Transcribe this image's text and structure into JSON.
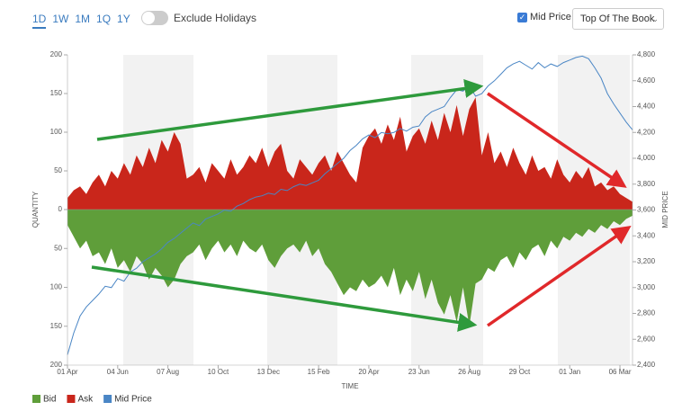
{
  "controls": {
    "ranges": [
      "1D",
      "1W",
      "1M",
      "1Q",
      "1Y"
    ],
    "toggle_label": "Exclude Holidays",
    "checkbox_label": "Mid Price",
    "select_value": "Top Of The Book"
  },
  "chart_data": {
    "type": "mirror-area",
    "x_label": "TIME",
    "y_label": "QUANTITY",
    "y2_label": "MID PRICE",
    "categories": [
      "01 Apr",
      null,
      null,
      null,
      null,
      null,
      null,
      null,
      "04 Jun",
      null,
      null,
      null,
      null,
      null,
      null,
      null,
      "07 Aug",
      null,
      null,
      null,
      null,
      null,
      null,
      null,
      "10 Oct",
      null,
      null,
      null,
      null,
      null,
      null,
      null,
      "13 Dec",
      null,
      null,
      null,
      null,
      null,
      null,
      null,
      "15 Feb",
      null,
      null,
      null,
      null,
      null,
      null,
      null,
      "20 Apr",
      null,
      null,
      null,
      null,
      null,
      null,
      null,
      "23 Jun",
      null,
      null,
      null,
      null,
      null,
      null,
      null,
      "26 Aug",
      null,
      null,
      null,
      null,
      null,
      null,
      null,
      "29 Oct",
      null,
      null,
      null,
      null,
      null,
      null,
      null,
      "01 Jan",
      null,
      null,
      null,
      null,
      null,
      null,
      null,
      "06 Mar",
      null,
      null
    ],
    "series": [
      {
        "name": "Bid",
        "color": "#5f9e3a",
        "values": [
          20,
          35,
          50,
          40,
          60,
          55,
          70,
          50,
          75,
          65,
          80,
          60,
          70,
          90,
          75,
          85,
          100,
          90,
          70,
          60,
          55,
          45,
          65,
          50,
          40,
          55,
          45,
          60,
          40,
          50,
          55,
          45,
          65,
          75,
          60,
          50,
          45,
          55,
          40,
          60,
          50,
          70,
          80,
          95,
          110,
          100,
          105,
          90,
          100,
          95,
          85,
          100,
          75,
          110,
          90,
          105,
          80,
          115,
          90,
          120,
          135,
          110,
          145,
          100,
          150,
          95,
          90,
          75,
          80,
          65,
          60,
          75,
          55,
          65,
          50,
          45,
          60,
          40,
          50,
          35,
          40,
          30,
          35,
          25,
          30,
          20,
          25,
          15,
          20,
          12,
          8
        ]
      },
      {
        "name": "Ask",
        "color": "#c9261b",
        "values": [
          15,
          25,
          30,
          20,
          35,
          45,
          30,
          50,
          40,
          60,
          45,
          70,
          55,
          80,
          60,
          90,
          75,
          100,
          85,
          40,
          45,
          55,
          35,
          60,
          50,
          40,
          65,
          45,
          55,
          70,
          60,
          80,
          55,
          75,
          85,
          50,
          40,
          65,
          55,
          45,
          60,
          70,
          50,
          75,
          60,
          45,
          35,
          80,
          95,
          105,
          85,
          110,
          90,
          120,
          75,
          95,
          105,
          85,
          115,
          90,
          125,
          100,
          135,
          95,
          130,
          145,
          70,
          100,
          60,
          75,
          55,
          80,
          60,
          45,
          70,
          50,
          55,
          40,
          65,
          45,
          35,
          50,
          40,
          55,
          30,
          35,
          25,
          30,
          20,
          15,
          10
        ]
      },
      {
        "name": "Mid Price",
        "color": "#4a86c5",
        "axis": "y2",
        "values": [
          2480,
          2650,
          2780,
          2850,
          2900,
          2950,
          3010,
          3000,
          3070,
          3050,
          3120,
          3150,
          3200,
          3230,
          3260,
          3300,
          3350,
          3380,
          3420,
          3460,
          3500,
          3480,
          3530,
          3550,
          3570,
          3600,
          3590,
          3630,
          3650,
          3680,
          3700,
          3710,
          3730,
          3720,
          3760,
          3750,
          3780,
          3800,
          3790,
          3810,
          3830,
          3880,
          3920,
          3960,
          4000,
          4060,
          4100,
          4150,
          4180,
          4160,
          4200,
          4190,
          4200,
          4230,
          4210,
          4240,
          4250,
          4320,
          4360,
          4380,
          4400,
          4470,
          4530,
          4520,
          4560,
          4480,
          4500,
          4560,
          4600,
          4650,
          4700,
          4730,
          4750,
          4720,
          4690,
          4740,
          4700,
          4730,
          4710,
          4740,
          4760,
          4780,
          4790,
          4770,
          4700,
          4620,
          4500,
          4420,
          4350,
          4280,
          4220
        ]
      }
    ],
    "ylim": [
      0,
      200
    ],
    "yticks": [
      0,
      50,
      100,
      150,
      200
    ],
    "bid_ylim": [
      0,
      200
    ],
    "bid_yticks": [
      50,
      100,
      150,
      200
    ],
    "y2lim": [
      2400,
      4800
    ],
    "y2ticks": [
      {
        "value": 2400,
        "label": "2,400"
      },
      {
        "value": 2600,
        "label": "2,600"
      },
      {
        "value": 2800,
        "label": "2,800"
      },
      {
        "value": 3000,
        "label": "3,000"
      },
      {
        "value": 3200,
        "label": "3,200"
      },
      {
        "value": 3400,
        "label": "3,400"
      },
      {
        "value": 3600,
        "label": "3,600"
      },
      {
        "value": 3800,
        "label": "3,800"
      },
      {
        "value": 4000,
        "label": "4,000"
      },
      {
        "value": 4200,
        "label": "4,200"
      },
      {
        "value": 4400,
        "label": "4,400"
      },
      {
        "value": 4600,
        "label": "4,600"
      },
      {
        "value": 4800,
        "label": "4,800"
      }
    ],
    "legend": "bottom-left"
  }
}
